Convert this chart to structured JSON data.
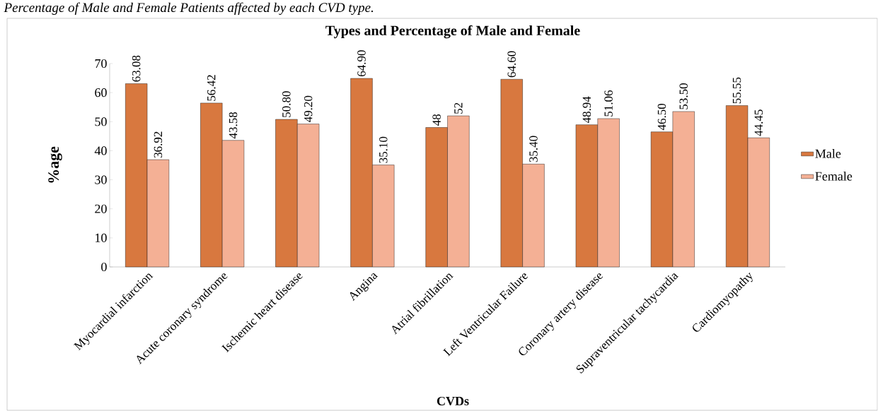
{
  "chart_data": {
    "type": "bar",
    "title": "Types and Percentage of Male and Female",
    "xlabel": "CVDs",
    "ylabel": "%age",
    "annotations": [
      "Percentage of Male and Female Patients affected by each CVD type."
    ],
    "categories": [
      "Myocardial infarction",
      "Acute coronary syndrome",
      "Ischemic heart disease",
      "Angina",
      "Atrial fibrillation",
      "Left Ventricular Failure",
      "Coronary artery disease",
      "Supraventricular tachycardia",
      "Cardiomyopathy"
    ],
    "series": [
      {
        "name": "Male",
        "color": "#d8783f",
        "values": [
          63.08,
          56.42,
          50.8,
          64.9,
          48,
          64.6,
          48.94,
          46.5,
          55.55
        ],
        "value_labels": [
          "63.08",
          "56.42",
          "50.80",
          "64.90",
          "48",
          "64.60",
          "48.94",
          "46.50",
          "55.55"
        ]
      },
      {
        "name": "Female",
        "color": "#f4b095",
        "values": [
          36.92,
          43.58,
          49.2,
          35.1,
          52,
          35.4,
          51.06,
          53.5,
          44.45
        ],
        "value_labels": [
          "36.92",
          "43.58",
          "49.20",
          "35.10",
          "52",
          "35.40",
          "51.06",
          "53.50",
          "44.45"
        ]
      }
    ],
    "ylim": [
      0,
      70
    ],
    "yticks": [
      0,
      10,
      20,
      30,
      40,
      50,
      60,
      70
    ],
    "legend": "right",
    "grid": false
  }
}
